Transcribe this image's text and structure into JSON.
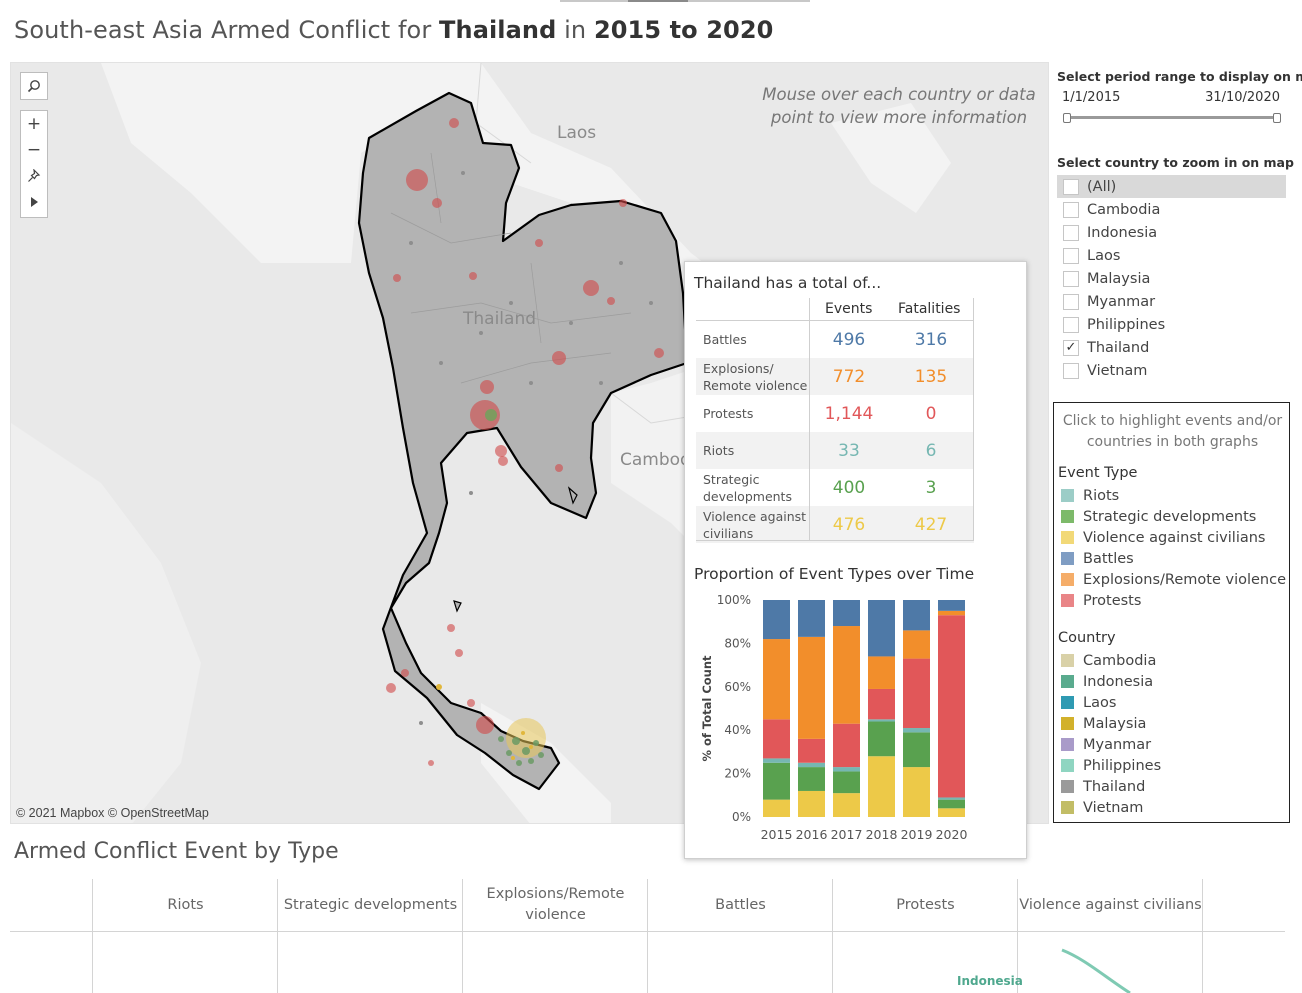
{
  "title": {
    "prefix": "South-east Asia Armed Conflict for ",
    "country": "Thailand",
    "middle": " in ",
    "period": "2015 to 2020"
  },
  "map": {
    "hint": "Mouse over each country or data point to view more information",
    "labels": {
      "laos": "Laos",
      "thailand": "Thailand",
      "cambodia": "Cambod"
    },
    "attribution": "© 2021 Mapbox © OpenStreetMap",
    "tools": [
      "search-icon",
      "zoom-in-icon",
      "zoom-out-icon",
      "pin-icon",
      "play-icon"
    ]
  },
  "tooltip": {
    "title": "Thailand has a total of...",
    "col_events": "Events",
    "col_fatalities": "Fatalities",
    "rows": [
      {
        "label": "Battles",
        "events": "496",
        "fatalities": "316",
        "color": "#4e79a7"
      },
      {
        "label": "Explosions/ Remote violence",
        "events": "772",
        "fatalities": "135",
        "color": "#f28e2b"
      },
      {
        "label": "Protests",
        "events": "1,144",
        "fatalities": "0",
        "color": "#e15759"
      },
      {
        "label": "Riots",
        "events": "33",
        "fatalities": "6",
        "color": "#76b7b2"
      },
      {
        "label": "Strategic developments",
        "events": "400",
        "fatalities": "3",
        "color": "#59a14f"
      },
      {
        "label": "Violence against civilians",
        "events": "476",
        "fatalities": "427",
        "color": "#edc948"
      }
    ],
    "chart_title": "Proportion of Event Types over Time"
  },
  "chart_data": {
    "type": "bar",
    "stacked": true,
    "categories": [
      "2015",
      "2016",
      "2017",
      "2018",
      "2019",
      "2020"
    ],
    "ylabel": "% of Total Count",
    "yticks": [
      "0%",
      "20%",
      "40%",
      "60%",
      "80%",
      "100%"
    ],
    "ylim": [
      0,
      100
    ],
    "series": [
      {
        "name": "Violence against civilians",
        "color": "#edc948",
        "values": [
          8,
          12,
          11,
          28,
          23,
          4
        ]
      },
      {
        "name": "Strategic developments",
        "color": "#59a14f",
        "values": [
          17,
          11,
          10,
          16,
          16,
          4
        ]
      },
      {
        "name": "Riots",
        "color": "#76b7b2",
        "values": [
          2,
          2,
          2,
          1,
          2,
          1
        ]
      },
      {
        "name": "Protests",
        "color": "#e15759",
        "values": [
          18,
          11,
          20,
          14,
          32,
          84
        ]
      },
      {
        "name": "Explosions/Remote violence",
        "color": "#f28e2b",
        "values": [
          37,
          47,
          45,
          15,
          13,
          2
        ]
      },
      {
        "name": "Battles",
        "color": "#4e79a7",
        "values": [
          18,
          17,
          12,
          26,
          14,
          5
        ]
      }
    ]
  },
  "controls": {
    "period_heading": "Select period range to display on map",
    "period_start": "1/1/2015",
    "period_end": "31/10/2020",
    "country_heading": "Select country to zoom in on map",
    "countries": [
      {
        "label": "(All)",
        "checked": false,
        "highlight": true
      },
      {
        "label": "Cambodia",
        "checked": false,
        "highlight": false
      },
      {
        "label": "Indonesia",
        "checked": false,
        "highlight": false
      },
      {
        "label": "Laos",
        "checked": false,
        "highlight": false
      },
      {
        "label": "Malaysia",
        "checked": false,
        "highlight": false
      },
      {
        "label": "Myanmar",
        "checked": false,
        "highlight": false
      },
      {
        "label": "Philippines",
        "checked": false,
        "highlight": false
      },
      {
        "label": "Thailand",
        "checked": true,
        "highlight": false
      },
      {
        "label": "Vietnam",
        "checked": false,
        "highlight": false
      }
    ]
  },
  "legend": {
    "hint": "Click to highlight events and/or countries in both graphs",
    "event_type_title": "Event Type",
    "event_types": [
      {
        "label": "Riots",
        "color": "#9ccdc7"
      },
      {
        "label": "Strategic developments",
        "color": "#7dba6a"
      },
      {
        "label": "Violence against civilians",
        "color": "#f2d978"
      },
      {
        "label": "Battles",
        "color": "#7f9dc3"
      },
      {
        "label": "Explosions/Remote violence",
        "color": "#f5ad69"
      },
      {
        "label": "Protests",
        "color": "#e98587"
      }
    ],
    "country_title": "Country",
    "countries": [
      {
        "label": "Cambodia",
        "color": "#d9d1a8"
      },
      {
        "label": "Indonesia",
        "color": "#5aab8e"
      },
      {
        "label": "Laos",
        "color": "#2f9ab2"
      },
      {
        "label": "Malaysia",
        "color": "#d2b12b"
      },
      {
        "label": "Myanmar",
        "color": "#a99bc9"
      },
      {
        "label": "Philippines",
        "color": "#8fd5c1"
      },
      {
        "label": "Thailand",
        "color": "#9a9a9a"
      },
      {
        "label": "Vietnam",
        "color": "#c2bd66"
      }
    ]
  },
  "bottom": {
    "title": "Armed Conflict Event by Type",
    "columns": [
      "Riots",
      "Strategic developments",
      "Explosions/Remote violence",
      "Battles",
      "Protests",
      "Violence against civilians"
    ],
    "series_label": "Indonesia"
  }
}
